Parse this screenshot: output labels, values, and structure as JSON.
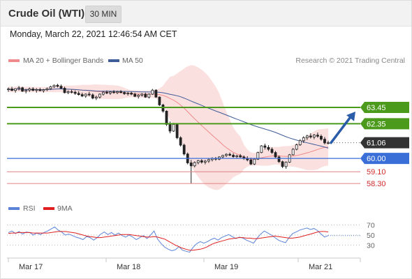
{
  "header": {
    "title": "Crude Oil (WTI)",
    "timeframe": "30 MIN"
  },
  "datetime": "Monday, March 22, 2021 12:46:54 AM CET",
  "legend": {
    "bollinger": "MA 20 + Bollinger Bands",
    "ma50": "MA 50",
    "rsi": "RSI",
    "rsi_ma": "9MA"
  },
  "copyright": "Research © 2021 Trading Central",
  "colors": {
    "resistance": "#4c9a1c",
    "support_blue": "#3a6fd8",
    "support_red": "#d22a2a",
    "candle": "#222222",
    "bollinger_fill": "#fbe0e0",
    "ma20": "#f08a8a",
    "ma50": "#3f5c9a",
    "arrow": "#2a5caa",
    "price_tag": "#333333",
    "rsi": "#5b84d8",
    "rsi_ma": "#e02020"
  },
  "chart_data": [
    {
      "type": "candlestick",
      "title": "Crude Oil (WTI)",
      "ylim": [
        57.6,
        66.0
      ],
      "x_labels": [
        "Mar 17",
        "Mar 18",
        "Mar 19",
        "Mar 21"
      ],
      "levels": [
        {
          "value": 63.45,
          "label": "63.45",
          "kind": "resistance"
        },
        {
          "value": 62.35,
          "label": "62.35",
          "kind": "resistance"
        },
        {
          "value": 61.06,
          "label": "61.06",
          "kind": "last"
        },
        {
          "value": 60.0,
          "label": "60.00",
          "kind": "support"
        },
        {
          "value": 59.1,
          "label": "59.10",
          "kind": "support"
        },
        {
          "value": 58.3,
          "label": "58.30",
          "kind": "support"
        }
      ],
      "forecast_arrow": {
        "from": 61.06,
        "to": 63.45
      },
      "bars": [
        [
          64.65,
          64.8,
          64.5,
          64.7
        ],
        [
          64.7,
          64.85,
          64.55,
          64.6
        ],
        [
          64.6,
          64.75,
          64.45,
          64.72
        ],
        [
          64.72,
          64.9,
          64.6,
          64.78
        ],
        [
          64.78,
          64.85,
          64.5,
          64.55
        ],
        [
          64.55,
          64.7,
          64.4,
          64.62
        ],
        [
          64.62,
          64.8,
          64.5,
          64.7
        ],
        [
          64.7,
          64.82,
          64.55,
          64.6
        ],
        [
          64.6,
          64.75,
          64.45,
          64.66
        ],
        [
          64.66,
          64.78,
          64.55,
          64.58
        ],
        [
          64.58,
          64.7,
          64.45,
          64.65
        ],
        [
          64.65,
          64.8,
          64.55,
          64.72
        ],
        [
          64.72,
          64.92,
          64.65,
          64.85
        ],
        [
          64.85,
          65.0,
          64.78,
          64.95
        ],
        [
          64.95,
          65.05,
          64.8,
          64.88
        ],
        [
          64.88,
          65.0,
          64.7,
          64.75
        ],
        [
          64.75,
          64.85,
          64.4,
          64.45
        ],
        [
          64.45,
          64.6,
          64.35,
          64.52
        ],
        [
          64.52,
          64.65,
          64.4,
          64.48
        ],
        [
          64.48,
          64.6,
          64.3,
          64.4
        ],
        [
          64.4,
          64.55,
          64.25,
          64.32
        ],
        [
          64.32,
          64.45,
          64.15,
          64.22
        ],
        [
          64.22,
          64.4,
          64.1,
          64.35
        ],
        [
          64.35,
          64.5,
          64.2,
          64.3
        ],
        [
          64.3,
          64.4,
          64.0,
          64.08
        ],
        [
          64.08,
          64.25,
          63.95,
          64.15
        ],
        [
          64.15,
          64.4,
          64.05,
          64.35
        ],
        [
          64.35,
          64.55,
          64.25,
          64.48
        ],
        [
          64.48,
          64.6,
          64.35,
          64.42
        ],
        [
          64.42,
          64.55,
          64.3,
          64.5
        ],
        [
          64.5,
          64.62,
          64.38,
          64.45
        ],
        [
          64.45,
          64.58,
          64.35,
          64.52
        ],
        [
          64.52,
          64.62,
          64.4,
          64.46
        ],
        [
          64.46,
          64.55,
          64.3,
          64.38
        ],
        [
          64.38,
          64.5,
          64.25,
          64.42
        ],
        [
          64.42,
          64.52,
          64.28,
          64.35
        ],
        [
          64.35,
          64.45,
          64.15,
          64.2
        ],
        [
          64.2,
          64.35,
          64.05,
          64.28
        ],
        [
          64.28,
          64.42,
          64.18,
          64.35
        ],
        [
          64.35,
          64.45,
          64.1,
          64.15
        ],
        [
          64.15,
          64.4,
          64.05,
          64.35
        ],
        [
          64.35,
          64.7,
          64.3,
          64.62
        ],
        [
          64.62,
          64.68,
          64.1,
          64.15
        ],
        [
          64.15,
          64.2,
          63.55,
          63.62
        ],
        [
          63.62,
          63.7,
          63.1,
          63.2
        ],
        [
          63.2,
          63.25,
          62.2,
          62.3
        ],
        [
          62.3,
          62.5,
          61.7,
          61.85
        ],
        [
          61.85,
          62.4,
          61.8,
          62.3
        ],
        [
          62.3,
          62.35,
          61.3,
          61.4
        ],
        [
          61.4,
          61.5,
          60.8,
          60.9
        ],
        [
          60.9,
          61.0,
          60.2,
          60.3
        ],
        [
          60.3,
          60.4,
          59.6,
          59.7
        ],
        [
          59.7,
          59.9,
          58.3,
          59.5
        ],
        [
          59.5,
          59.8,
          59.4,
          59.72
        ],
        [
          59.72,
          59.9,
          59.6,
          59.85
        ],
        [
          59.85,
          59.95,
          59.65,
          59.75
        ],
        [
          59.75,
          59.9,
          59.6,
          59.82
        ],
        [
          59.82,
          60.0,
          59.7,
          59.92
        ],
        [
          59.92,
          60.08,
          59.8,
          60.0
        ],
        [
          60.0,
          60.1,
          59.85,
          59.95
        ],
        [
          59.95,
          60.15,
          59.88,
          60.1
        ],
        [
          60.1,
          60.25,
          60.0,
          60.2
        ],
        [
          60.2,
          60.35,
          60.1,
          60.28
        ],
        [
          60.28,
          60.4,
          60.15,
          60.22
        ],
        [
          60.22,
          60.35,
          60.05,
          60.12
        ],
        [
          60.12,
          60.25,
          60.0,
          60.18
        ],
        [
          60.18,
          60.3,
          60.05,
          60.1
        ],
        [
          60.1,
          60.2,
          59.9,
          60.0
        ],
        [
          60.0,
          60.15,
          59.8,
          59.9
        ],
        [
          59.9,
          60.05,
          59.55,
          59.62
        ],
        [
          59.62,
          60.0,
          59.55,
          59.95
        ],
        [
          59.95,
          60.45,
          59.9,
          60.4
        ],
        [
          60.4,
          60.9,
          60.35,
          60.85
        ],
        [
          60.85,
          61.0,
          60.6,
          60.75
        ],
        [
          60.75,
          60.9,
          60.5,
          60.62
        ],
        [
          60.62,
          60.75,
          60.3,
          60.4
        ],
        [
          60.4,
          60.5,
          60.05,
          60.1
        ],
        [
          60.1,
          60.2,
          59.7,
          59.78
        ],
        [
          59.78,
          59.85,
          59.35,
          59.45
        ],
        [
          59.45,
          59.8,
          59.3,
          59.75
        ],
        [
          59.75,
          60.3,
          59.7,
          60.25
        ],
        [
          60.25,
          60.7,
          60.2,
          60.62
        ],
        [
          60.62,
          61.0,
          60.55,
          60.92
        ],
        [
          60.92,
          61.3,
          60.85,
          61.2
        ],
        [
          61.2,
          61.5,
          61.05,
          61.4
        ],
        [
          61.4,
          61.6,
          61.25,
          61.52
        ],
        [
          61.52,
          61.7,
          61.35,
          61.45
        ],
        [
          61.45,
          61.65,
          61.3,
          61.58
        ],
        [
          61.58,
          61.75,
          61.4,
          61.5
        ],
        [
          61.5,
          61.62,
          61.2,
          61.3
        ],
        [
          61.3,
          61.45,
          60.95,
          61.05
        ],
        [
          61.05,
          61.2,
          60.95,
          61.06
        ]
      ],
      "series": [
        {
          "name": "MA 20 + Bollinger Bands",
          "kind": "bollinger"
        },
        {
          "name": "MA 50",
          "kind": "sma",
          "period": 50
        }
      ]
    },
    {
      "type": "line",
      "ylim": [
        10,
        90
      ],
      "y_ticks": [
        70,
        50,
        30
      ],
      "series": [
        {
          "name": "RSI",
          "values": [
            55,
            58,
            53,
            57,
            52,
            56,
            55,
            50,
            54,
            51,
            55,
            58,
            62,
            66,
            60,
            56,
            50,
            52,
            49,
            46,
            44,
            41,
            47,
            45,
            40,
            45,
            52,
            56,
            51,
            55,
            50,
            54,
            49,
            46,
            50,
            46,
            41,
            45,
            49,
            43,
            50,
            58,
            42,
            33,
            26,
            22,
            19,
            21,
            27,
            20,
            18,
            16,
            26,
            33,
            37,
            34,
            37,
            41,
            44,
            40,
            45,
            48,
            51,
            47,
            43,
            46,
            44,
            40,
            37,
            34,
            44,
            52,
            58,
            54,
            50,
            45,
            40,
            37,
            35,
            45,
            53,
            56,
            60,
            62,
            64,
            61,
            63,
            59,
            52,
            46,
            49
          ]
        },
        {
          "name": "9MA",
          "values": [
            53,
            54,
            54,
            55,
            55,
            55,
            55,
            54,
            54,
            54,
            54,
            54,
            55,
            56,
            57,
            57,
            57,
            56,
            55,
            54,
            52,
            50,
            48,
            47,
            46,
            45,
            45,
            46,
            47,
            48,
            49,
            50,
            51,
            51,
            51,
            50,
            49,
            48,
            47,
            46,
            46,
            47,
            46,
            44,
            42,
            38,
            34,
            30,
            27,
            24,
            22,
            20,
            20,
            21,
            22,
            24,
            27,
            31,
            34,
            36,
            38,
            40,
            42,
            43,
            44,
            45,
            45,
            44,
            44,
            43,
            43,
            44,
            45,
            46,
            47,
            48,
            47,
            46,
            45,
            44,
            44,
            45,
            46,
            48,
            50,
            52,
            54,
            56,
            57,
            57,
            56
          ]
        }
      ]
    }
  ]
}
